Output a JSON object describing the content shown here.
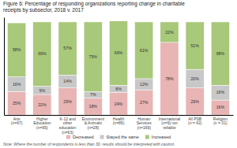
{
  "chart_data": {
    "type": "bar",
    "stacked": true,
    "title": "Figure 6: Percentage of responding organizations reporting change in charitable\nreceipts by subsector, 2018 v. 2017",
    "categories": [
      "Arts\n(n=67)",
      "Higher\nEducation\n(n=65)",
      "K-12 and\nother\neducation\n(n=63)",
      "Environment\n& Animals\n(n=28)",
      "Health\n(n=89)",
      "Human\nServices\n(n=169)",
      "International\n(n=9) not\nreliable",
      "All PSB\n(n = 42)",
      "Religion\n(n = 31)"
    ],
    "series": [
      {
        "name": "Decreased",
        "color": "#e8b4b4",
        "values": [
          25,
          22,
          29,
          18,
          24,
          27,
          78,
          29,
          16
        ],
        "value_labels": [
          "25%",
          "22%",
          "29%",
          "18%",
          "24%",
          "27%",
          "78%",
          "29%",
          "16%"
        ]
      },
      {
        "name": "Stayed the same",
        "color": "#c8c8c8",
        "values": [
          16,
          9,
          14,
          7,
          8,
          12,
          0,
          20,
          16
        ],
        "value_labels": [
          "16%",
          "9%",
          "14%",
          "7%",
          "8%",
          "12%",
          null,
          "20%",
          "16%"
        ]
      },
      {
        "name": "Increased",
        "color": "#a8c87a",
        "values": [
          58,
          69,
          57,
          75,
          69,
          61,
          22,
          51,
          68
        ],
        "value_labels": [
          "58%",
          "69%",
          "57%",
          "75%",
          "69%",
          "61%",
          "22%",
          "51%",
          "68%"
        ]
      }
    ],
    "ylim": [
      0,
      105
    ],
    "data_labels": true,
    "tick_labels": "x",
    "legend": "bottom",
    "grid": false,
    "annotations": [
      "Note: Where the number of respondents is less than 30, results should be interpreted with caution."
    ]
  }
}
